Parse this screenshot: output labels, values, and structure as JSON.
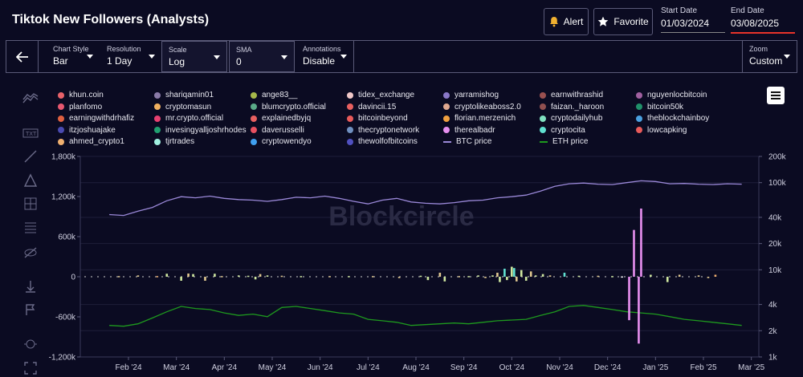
{
  "header": {
    "title": "Tiktok New Followers (Analysts)",
    "alert_label": "Alert",
    "favorite_label": "Favorite",
    "start_date_label": "Start Date",
    "start_date": "01/03/2024",
    "end_date_label": "End Date",
    "end_date": "03/08/2025"
  },
  "controls": {
    "chart_style": {
      "label": "Chart Style",
      "value": "Bar"
    },
    "resolution": {
      "label": "Resolution",
      "value": "1 Day"
    },
    "scale": {
      "label": "Scale",
      "value": "Log"
    },
    "sma": {
      "label": "SMA",
      "value": "0"
    },
    "annotations": {
      "label": "Annotations",
      "value": "Disable"
    },
    "zoom": {
      "label": "Zoom",
      "value": "Custom"
    }
  },
  "legend": [
    {
      "name": "khun.coin",
      "color": "#e8626a"
    },
    {
      "name": "shariqamin01",
      "color": "#8a7aa8"
    },
    {
      "name": "ange83__",
      "color": "#a6b84a"
    },
    {
      "name": "tidex_exchange",
      "color": "#f0c8c8"
    },
    {
      "name": "yarramishog",
      "color": "#8a78c8"
    },
    {
      "name": "earnwithrashid",
      "color": "#9a5050"
    },
    {
      "name": "nguyenlocbitcoin",
      "color": "#a060a0"
    },
    {
      "name": "planfomo",
      "color": "#e85870"
    },
    {
      "name": "cryptomasun",
      "color": "#f0b060"
    },
    {
      "name": "blumcrypto.official",
      "color": "#5aaa88"
    },
    {
      "name": "davincii.15",
      "color": "#e86060"
    },
    {
      "name": "cryptolikeaboss2.0",
      "color": "#e0a890"
    },
    {
      "name": "faizan._haroon",
      "color": "#905050"
    },
    {
      "name": "bitcoin50k",
      "color": "#20906a"
    },
    {
      "name": "earningwithdrhafiz",
      "color": "#e06040"
    },
    {
      "name": "mr.crypto.official",
      "color": "#e84070"
    },
    {
      "name": "explainedbyjq",
      "color": "#e86060"
    },
    {
      "name": "bitcoinbeyond",
      "color": "#e85a5a"
    },
    {
      "name": "florian.merzenich",
      "color": "#f0a040"
    },
    {
      "name": "cryptodailyhub",
      "color": "#80e0c0"
    },
    {
      "name": "theblockchainboy",
      "color": "#4aa0e0"
    },
    {
      "name": "itzjoshuajake",
      "color": "#4a4ab0"
    },
    {
      "name": "invesingyalljoshrhodes",
      "color": "#20a070"
    },
    {
      "name": "daverusselli",
      "color": "#e85060"
    },
    {
      "name": "thecryptonetwork",
      "color": "#7090c0"
    },
    {
      "name": "therealbadr",
      "color": "#e890f0"
    },
    {
      "name": "cryptocita",
      "color": "#60e0d0"
    },
    {
      "name": "lowcapking",
      "color": "#e85a5a"
    },
    {
      "name": "ahmed_crypto1",
      "color": "#f0b070"
    },
    {
      "name": "tjrtrades",
      "color": "#a0f0e0"
    },
    {
      "name": "cryptowendyo",
      "color": "#40a0f0"
    },
    {
      "name": "thewolfofbitcoins",
      "color": "#5050c0"
    },
    {
      "name": "BTC price",
      "color": "#9a88d8",
      "line": true
    },
    {
      "name": "ETH price",
      "color": "#1e9a1e",
      "line": true
    }
  ],
  "watermark": "Blockcircle",
  "chart_data": {
    "type": "bar",
    "x_ticks": [
      "Feb '24",
      "Mar '24",
      "Apr '24",
      "May '24",
      "Jun '24",
      "Jul '24",
      "Aug '24",
      "Sep '24",
      "Oct '24",
      "Nov '24",
      "Dec '24",
      "Jan '25",
      "Feb '25",
      "Mar '25"
    ],
    "left_axis": {
      "ticks": [
        "1,800k",
        "1,200k",
        "600k",
        "0",
        "-600k",
        "-1,200k"
      ],
      "ylim": [
        -1200000,
        1800000
      ]
    },
    "right_axis": {
      "scale": "log",
      "ticks": [
        "200k",
        "100k",
        "40k",
        "20k",
        "10k",
        "4k",
        "2k",
        "1k"
      ],
      "ylim": [
        1000,
        200000
      ]
    },
    "btc_price": {
      "x_month": [
        0,
        0.3,
        0.6,
        0.9,
        1.2,
        1.5,
        1.8,
        2.1,
        2.4,
        2.7,
        3.0,
        3.3,
        3.6,
        3.9,
        4.2,
        4.5,
        4.8,
        5.1,
        5.4,
        5.7,
        6.0,
        6.3,
        6.6,
        6.9,
        7.2,
        7.5,
        7.8,
        8.1,
        8.4,
        8.7,
        9.0,
        9.3,
        9.6,
        9.9,
        10.2,
        10.5,
        10.8,
        11.1,
        11.4,
        11.7,
        12.0,
        12.3,
        12.6,
        12.9,
        13.2
      ],
      "values": [
        43000,
        42000,
        47000,
        52000,
        62000,
        69000,
        67000,
        70000,
        66000,
        64000,
        63000,
        61000,
        64000,
        68000,
        67000,
        70000,
        66000,
        61000,
        57000,
        63000,
        66000,
        60000,
        58000,
        57000,
        59000,
        62000,
        63000,
        67000,
        69000,
        72000,
        80000,
        91000,
        97000,
        99000,
        96000,
        95000,
        100000,
        105000,
        103000,
        97000,
        98000,
        96000,
        95000,
        97000,
        96000
      ]
    },
    "eth_price": {
      "x_month": [
        0,
        0.3,
        0.6,
        0.9,
        1.2,
        1.5,
        1.8,
        2.1,
        2.4,
        2.7,
        3.0,
        3.3,
        3.6,
        3.9,
        4.2,
        4.5,
        4.8,
        5.1,
        5.4,
        5.7,
        6.0,
        6.3,
        6.6,
        6.9,
        7.2,
        7.5,
        7.8,
        8.1,
        8.4,
        8.7,
        9.0,
        9.3,
        9.6,
        9.9,
        10.2,
        10.5,
        10.8,
        11.1,
        11.4,
        11.7,
        12.0,
        12.3,
        12.6,
        12.9,
        13.2
      ],
      "values": [
        2300,
        2250,
        2400,
        2800,
        3300,
        3800,
        3600,
        3500,
        3200,
        3000,
        3100,
        2900,
        3700,
        3800,
        3600,
        3400,
        3200,
        3100,
        2700,
        2600,
        2500,
        2300,
        2350,
        2400,
        2450,
        2400,
        2500,
        2600,
        2650,
        2700,
        3000,
        3300,
        3800,
        3900,
        3700,
        3500,
        3300,
        3200,
        3100,
        2900,
        2700,
        2600,
        2500,
        2400,
        2300
      ]
    },
    "bars": [
      {
        "x_month": 0.2,
        "value": 10000,
        "color": "#e0c890"
      },
      {
        "x_month": 0.6,
        "value": 20000,
        "color": "#e0c890"
      },
      {
        "x_month": 1.0,
        "value": 10000,
        "color": "#f0b070"
      },
      {
        "x_month": 1.2,
        "value": 45000,
        "color": "#d0e8a0"
      },
      {
        "x_month": 1.5,
        "value": -60000,
        "color": "#d0e8a0"
      },
      {
        "x_month": 1.65,
        "value": 48000,
        "color": "#e0c890"
      },
      {
        "x_month": 1.75,
        "value": 40000,
        "color": "#d0e8a0"
      },
      {
        "x_month": 2.0,
        "value": -60000,
        "color": "#e0c890"
      },
      {
        "x_month": 2.2,
        "value": 45000,
        "color": "#d0e8a0"
      },
      {
        "x_month": 2.35,
        "value": 10000,
        "color": "#e0c890"
      },
      {
        "x_month": 2.7,
        "value": 20000,
        "color": "#d0e8a0"
      },
      {
        "x_month": 2.9,
        "value": 15000,
        "color": "#d0e8a0"
      },
      {
        "x_month": 3.05,
        "value": -40000,
        "color": "#d0e8a0"
      },
      {
        "x_month": 3.15,
        "value": 40000,
        "color": "#e0c890"
      },
      {
        "x_month": 3.3,
        "value": 20000,
        "color": "#d0e8a0"
      },
      {
        "x_month": 3.6,
        "value": 15000,
        "color": "#e0c890"
      },
      {
        "x_month": 4.0,
        "value": 10000,
        "color": "#d0e8a0"
      },
      {
        "x_month": 4.6,
        "value": 10000,
        "color": "#e0c890"
      },
      {
        "x_month": 5.0,
        "value": 10000,
        "color": "#d0e8a0"
      },
      {
        "x_month": 5.5,
        "value": 10000,
        "color": "#e0c890"
      },
      {
        "x_month": 6.05,
        "value": -20000,
        "color": "#e0c890"
      },
      {
        "x_month": 6.5,
        "value": 15000,
        "color": "#d0e8a0"
      },
      {
        "x_month": 6.65,
        "value": -50000,
        "color": "#d0e8a0"
      },
      {
        "x_month": 6.9,
        "value": 60000,
        "color": "#e0c890"
      },
      {
        "x_month": 7.0,
        "value": -70000,
        "color": "#d0e8a0"
      },
      {
        "x_month": 7.3,
        "value": 10000,
        "color": "#e0c890"
      },
      {
        "x_month": 7.5,
        "value": 10000,
        "color": "#d0e8a0"
      },
      {
        "x_month": 7.7,
        "value": 20000,
        "color": "#d0e8a0"
      },
      {
        "x_month": 7.85,
        "value": -20000,
        "color": "#e0c890"
      },
      {
        "x_month": 8.0,
        "value": 20000,
        "color": "#d0e8a0"
      },
      {
        "x_month": 8.1,
        "value": 60000,
        "color": "#e0c890"
      },
      {
        "x_month": 8.15,
        "value": -80000,
        "color": "#d0e8a0"
      },
      {
        "x_month": 8.25,
        "value": 120000,
        "color": "#60e0d0"
      },
      {
        "x_month": 8.3,
        "value": -50000,
        "color": "#d0e8a0"
      },
      {
        "x_month": 8.4,
        "value": 150000,
        "color": "#d0e8a0"
      },
      {
        "x_month": 8.45,
        "value": 130000,
        "color": "#60e0d0"
      },
      {
        "x_month": 8.5,
        "value": -70000,
        "color": "#e0c890"
      },
      {
        "x_month": 8.6,
        "value": 100000,
        "color": "#d0e8a0"
      },
      {
        "x_month": 8.7,
        "value": -60000,
        "color": "#d0e8a0"
      },
      {
        "x_month": 8.8,
        "value": 80000,
        "color": "#e0c890"
      },
      {
        "x_month": 8.9,
        "value": 20000,
        "color": "#d0e8a0"
      },
      {
        "x_month": 9.05,
        "value": 40000,
        "color": "#d0e8a0"
      },
      {
        "x_month": 9.2,
        "value": 20000,
        "color": "#e0c890"
      },
      {
        "x_month": 9.5,
        "value": 60000,
        "color": "#60e0d0"
      },
      {
        "x_month": 9.8,
        "value": 15000,
        "color": "#d0e8a0"
      },
      {
        "x_month": 10.2,
        "value": 15000,
        "color": "#e0c890"
      },
      {
        "x_month": 10.5,
        "value": 10000,
        "color": "#d0e8a0"
      },
      {
        "x_month": 10.7,
        "value": 5000,
        "color": "#ffffff"
      },
      {
        "x_month": 10.85,
        "value": -650000,
        "color": "#e890f0"
      },
      {
        "x_month": 10.95,
        "value": 700000,
        "color": "#e890f0"
      },
      {
        "x_month": 11.05,
        "value": -1000000,
        "color": "#e890f0"
      },
      {
        "x_month": 11.1,
        "value": 1020000,
        "color": "#e890f0"
      },
      {
        "x_month": 11.3,
        "value": 30000,
        "color": "#d0e8a0"
      },
      {
        "x_month": 11.65,
        "value": -80000,
        "color": "#d0e8a0"
      },
      {
        "x_month": 11.9,
        "value": 30000,
        "color": "#e0c890"
      },
      {
        "x_month": 12.3,
        "value": 20000,
        "color": "#e0c890"
      },
      {
        "x_month": 12.5,
        "value": -20000,
        "color": "#e0c890"
      },
      {
        "x_month": 12.65,
        "value": 30000,
        "color": "#f0b070"
      }
    ]
  }
}
